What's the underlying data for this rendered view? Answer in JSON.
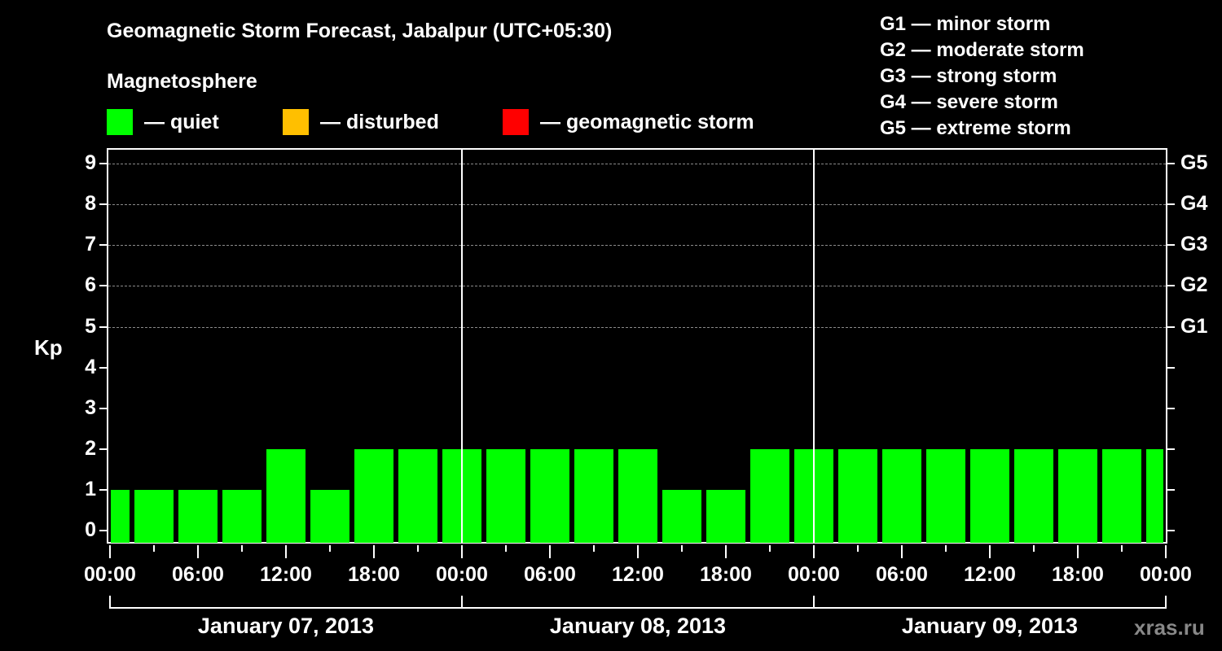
{
  "header": {
    "title": "Geomagnetic Storm Forecast, Jabalpur (UTC+05:30)",
    "subtitle": "Magnetosphere"
  },
  "legend": [
    {
      "label": "— quiet",
      "color": "#00ff00"
    },
    {
      "label": "— disturbed",
      "color": "#ffbf00"
    },
    {
      "label": "— geomagnetic storm",
      "color": "#ff0000"
    }
  ],
  "g_scale": [
    "G1 — minor storm",
    "G2 — moderate storm",
    "G3 — strong storm",
    "G4 — severe storm",
    "G5 — extreme storm"
  ],
  "watermark": "xras.ru",
  "chart_data": {
    "type": "bar",
    "title": "Geomagnetic Storm Forecast, Jabalpur (UTC+05:30)",
    "ylabel": "Kp",
    "xlabel": "",
    "ylim": [
      0,
      9
    ],
    "y_ticks": [
      "0",
      "1",
      "2",
      "3",
      "4",
      "5",
      "6",
      "7",
      "8",
      "9"
    ],
    "right_axis_ticks": [
      {
        "kp": 5,
        "label": "G1"
      },
      {
        "kp": 6,
        "label": "G2"
      },
      {
        "kp": 7,
        "label": "G3"
      },
      {
        "kp": 8,
        "label": "G4"
      },
      {
        "kp": 9,
        "label": "G5"
      }
    ],
    "x_tick_labels": [
      "00:00",
      "06:00",
      "12:00",
      "18:00",
      "00:00",
      "06:00",
      "12:00",
      "18:00",
      "00:00",
      "06:00",
      "12:00",
      "18:00",
      "00:00"
    ],
    "dates": [
      "January 07, 2013",
      "January 08, 2013",
      "January 09, 2013"
    ],
    "grid": "dashed horizontal at Kp 5-9",
    "bar_interval_hours": 3,
    "bar_time_offset_hours": 1.5,
    "categories": [
      "Jan07 -01:30",
      "Jan07 01:30",
      "Jan07 04:30",
      "Jan07 07:30",
      "Jan07 10:30",
      "Jan07 13:30",
      "Jan07 16:30",
      "Jan07 19:30",
      "Jan07 22:30",
      "Jan08 01:30",
      "Jan08 04:30",
      "Jan08 07:30",
      "Jan08 10:30",
      "Jan08 13:30",
      "Jan08 16:30",
      "Jan08 19:30",
      "Jan08 22:30",
      "Jan09 01:30",
      "Jan09 04:30",
      "Jan09 07:30",
      "Jan09 10:30",
      "Jan09 13:30",
      "Jan09 16:30",
      "Jan09 19:30",
      "Jan09 22:30"
    ],
    "values": [
      1,
      1,
      1,
      1,
      2,
      1,
      2,
      2,
      2,
      2,
      2,
      2,
      2,
      1,
      1,
      2,
      2,
      2,
      2,
      2,
      2,
      2,
      2,
      2,
      2
    ],
    "status": "quiet",
    "bar_color": "#00ff00"
  }
}
